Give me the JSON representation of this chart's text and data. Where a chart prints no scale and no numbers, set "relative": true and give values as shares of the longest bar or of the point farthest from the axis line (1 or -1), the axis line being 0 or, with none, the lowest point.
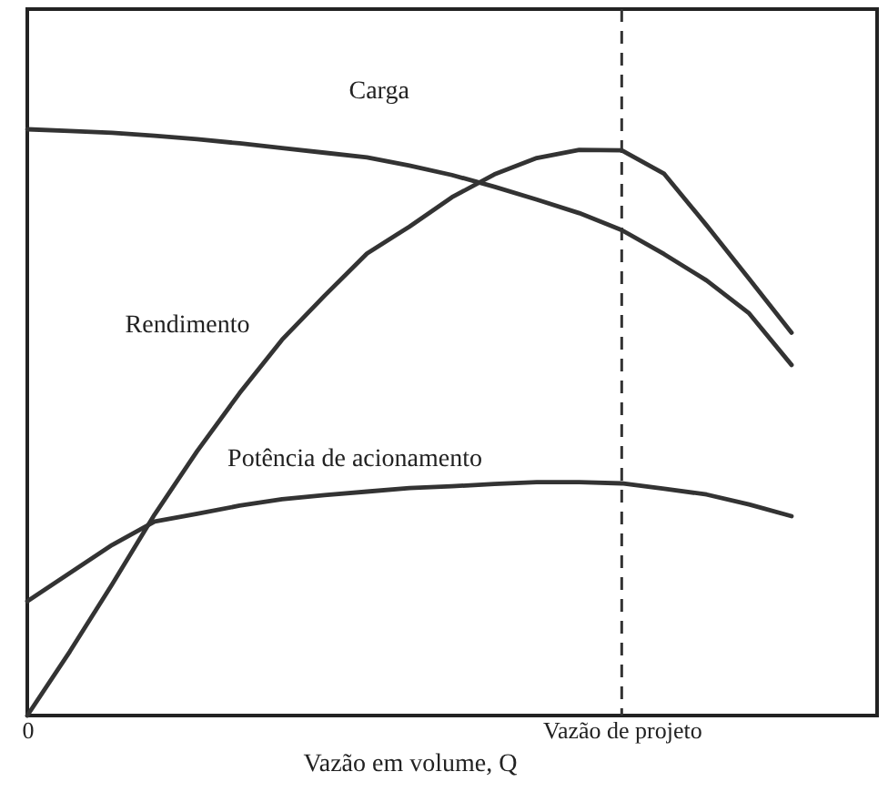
{
  "chart_data": {
    "type": "line",
    "relative": true,
    "xlabel": "Vazão em volume, Q",
    "line_style": "solid",
    "marker": "none",
    "categories": [
      "0",
      null,
      null,
      null,
      null,
      null,
      null,
      null,
      null,
      null,
      null,
      null,
      null,
      null,
      "Vazão de projeto",
      null,
      null,
      null,
      null
    ],
    "series": [
      {
        "name": "Carga",
        "color": "#333333",
        "values": [
          1.0,
          0.997,
          0.994,
          0.989,
          0.983,
          0.976,
          0.968,
          0.96,
          0.952,
          0.938,
          0.922,
          0.902,
          0.88,
          0.857,
          0.828,
          0.787,
          0.742,
          0.686,
          0.598
        ]
      },
      {
        "name": "Rendimento",
        "color": "#333333",
        "values": [
          0,
          0.109,
          0.224,
          0.343,
          0.451,
          0.55,
          0.641,
          0.716,
          0.788,
          0.834,
          0.884,
          0.923,
          0.951,
          0.965,
          0.964,
          0.924,
          0.836,
          0.745,
          0.653
        ]
      },
      {
        "name": "Potência de acionamento",
        "color": "#333333",
        "values": [
          0.195,
          0.243,
          0.291,
          0.331,
          0.344,
          0.358,
          0.369,
          0.376,
          0.382,
          0.388,
          0.391,
          0.395,
          0.398,
          0.398,
          0.396,
          0.387,
          0.377,
          0.36,
          0.34
        ]
      }
    ],
    "ref_lines": [
      {
        "axis": "x",
        "value": "Vazão de projeto",
        "line_style": "dashed",
        "color": "#333333"
      }
    ]
  }
}
